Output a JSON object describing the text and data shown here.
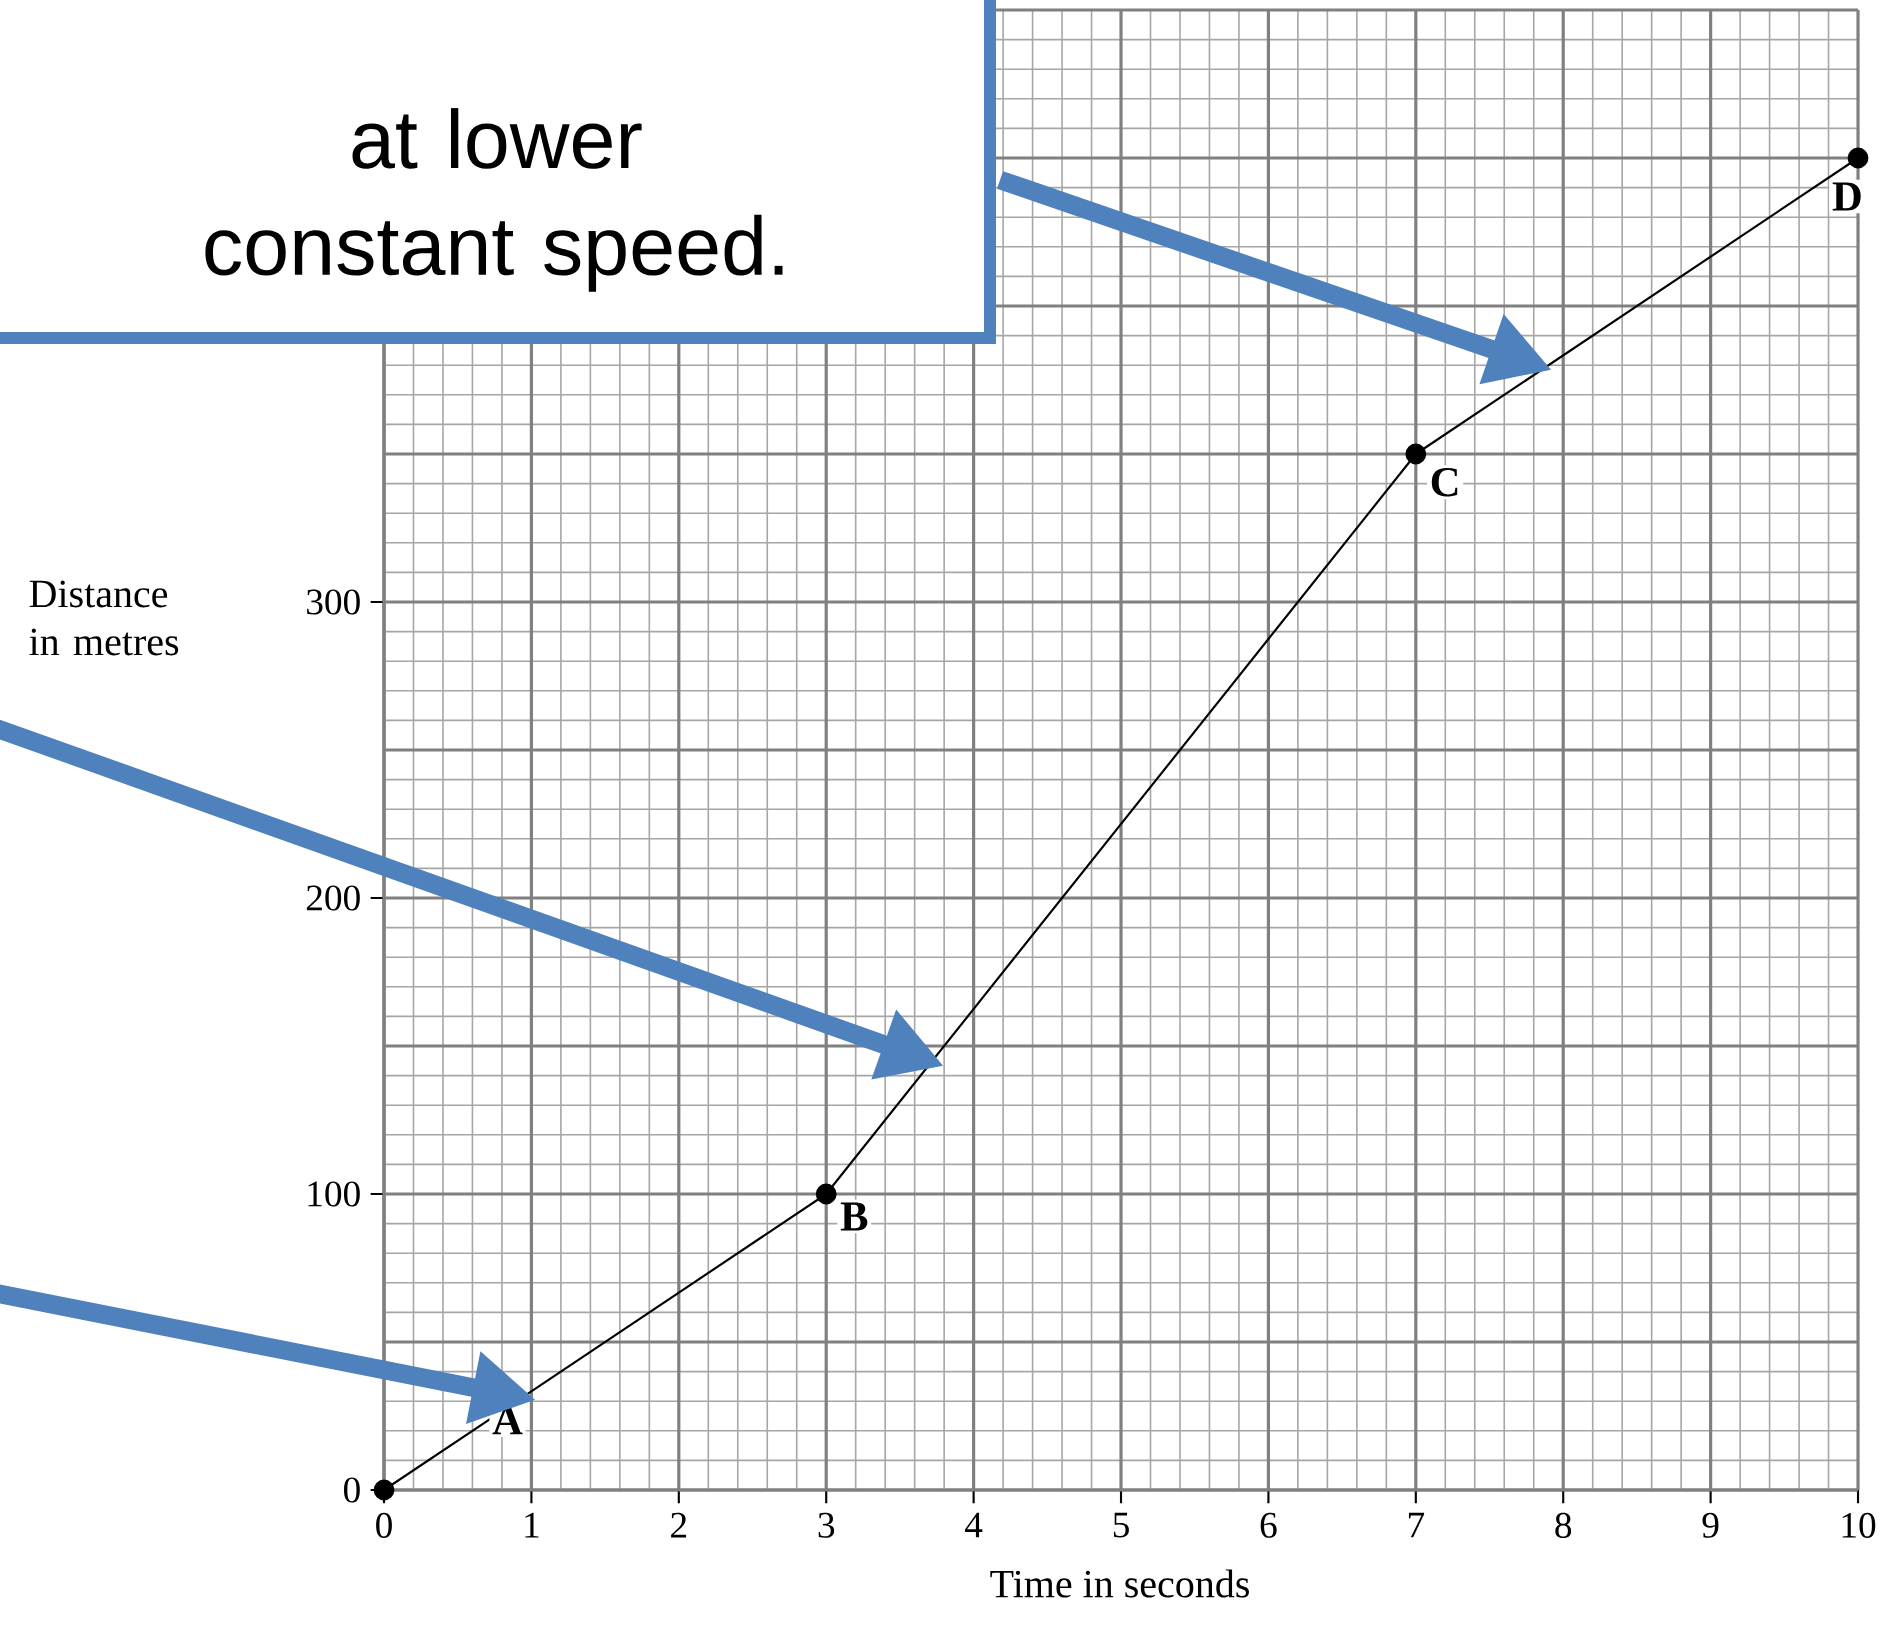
{
  "chart_data": {
    "type": "line",
    "xlabel": "Time in seconds",
    "ylabel": "Distance in metres",
    "x": [
      0,
      3,
      7,
      10
    ],
    "values": [
      0,
      100,
      350,
      450
    ],
    "color": "#000000",
    "marker": "circle",
    "line_style": "solid",
    "grid": true,
    "xlim": [
      0,
      10
    ],
    "ylim": [
      0,
      500
    ],
    "xticks": [
      0,
      1,
      2,
      3,
      4,
      5,
      6,
      7,
      8,
      9,
      10
    ],
    "yticks": [
      0,
      100,
      200,
      300
    ],
    "annotations": [
      "at lower constant speed.",
      {
        "text": "A",
        "x": 1,
        "y": 33
      },
      {
        "text": "B",
        "x": 3,
        "y": 100
      },
      {
        "text": "C",
        "x": 7,
        "y": 350
      },
      {
        "text": "D",
        "x": 10,
        "y": 450
      }
    ]
  }
}
